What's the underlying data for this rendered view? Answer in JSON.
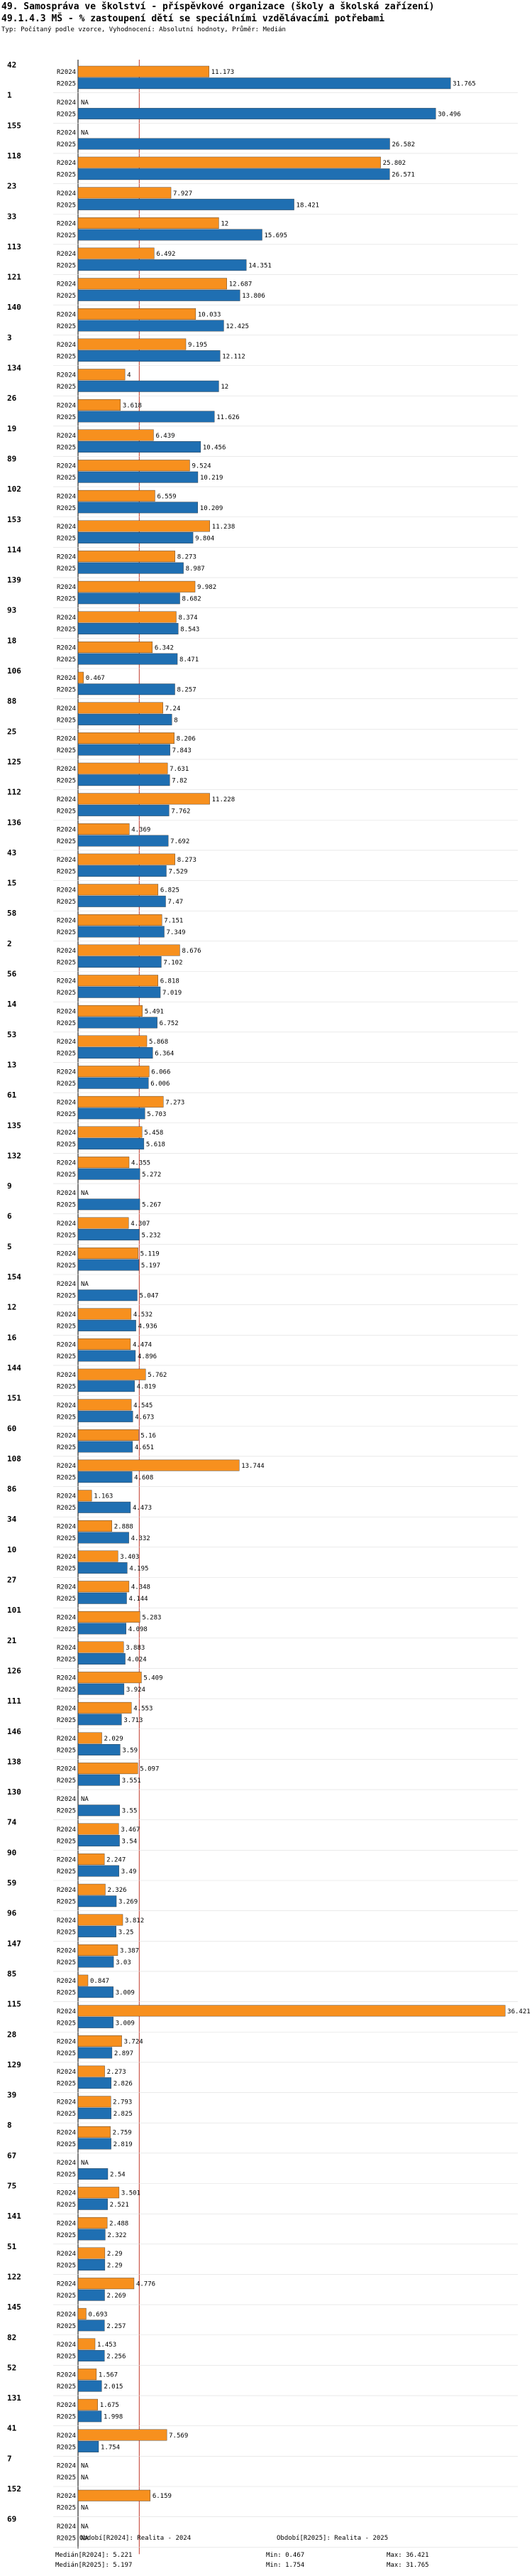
{
  "header": {
    "title": "49. Samospráva ve školství - příspěvkové organizace (školy a školská zařízení)",
    "subtitle_code": "49.1.4.3 MŠ - % zastoupení dětí se speciálními vzdělávacími potřebami",
    "note": "Typ: Počítaný podle vzorce, Vyhodnocení: Absolutní hodnoty, Průměr: Medián"
  },
  "chart_data": {
    "type": "bar",
    "orientation": "horizontal",
    "series": [
      {
        "name": "R2024",
        "color": "#f7901e"
      },
      {
        "name": "R2025",
        "color": "#1f6fb2"
      }
    ],
    "xlim": [
      0,
      37.5
    ],
    "median_line": 5.221,
    "categories": [
      {
        "id": "42",
        "r2024": 11.173,
        "r2025": 31.765
      },
      {
        "id": "1",
        "r2024": null,
        "r2025": 30.496
      },
      {
        "id": "155",
        "r2024": null,
        "r2025": 26.582
      },
      {
        "id": "118",
        "r2024": 25.802,
        "r2025": 26.571
      },
      {
        "id": "23",
        "r2024": 7.927,
        "r2025": 18.421
      },
      {
        "id": "33",
        "r2024": 12,
        "r2025": 15.695
      },
      {
        "id": "113",
        "r2024": 6.492,
        "r2025": 14.351
      },
      {
        "id": "121",
        "r2024": 12.687,
        "r2025": 13.806
      },
      {
        "id": "140",
        "r2024": 10.033,
        "r2025": 12.425
      },
      {
        "id": "3",
        "r2024": 9.195,
        "r2025": 12.112
      },
      {
        "id": "134",
        "r2024": 4,
        "r2025": 12
      },
      {
        "id": "26",
        "r2024": 3.618,
        "r2025": 11.626
      },
      {
        "id": "19",
        "r2024": 6.439,
        "r2025": 10.456
      },
      {
        "id": "89",
        "r2024": 9.524,
        "r2025": 10.219
      },
      {
        "id": "102",
        "r2024": 6.559,
        "r2025": 10.209
      },
      {
        "id": "153",
        "r2024": 11.238,
        "r2025": 9.804
      },
      {
        "id": "114",
        "r2024": 8.273,
        "r2025": 8.987
      },
      {
        "id": "139",
        "r2024": 9.982,
        "r2025": 8.682
      },
      {
        "id": "93",
        "r2024": 8.374,
        "r2025": 8.543
      },
      {
        "id": "18",
        "r2024": 6.342,
        "r2025": 8.471
      },
      {
        "id": "106",
        "r2024": 0.467,
        "r2025": 8.257
      },
      {
        "id": "88",
        "r2024": 7.24,
        "r2025": 8
      },
      {
        "id": "25",
        "r2024": 8.206,
        "r2025": 7.843
      },
      {
        "id": "125",
        "r2024": 7.631,
        "r2025": 7.82
      },
      {
        "id": "112",
        "r2024": 11.228,
        "r2025": 7.762
      },
      {
        "id": "136",
        "r2024": 4.369,
        "r2025": 7.692
      },
      {
        "id": "43",
        "r2024": 8.273,
        "r2025": 7.529
      },
      {
        "id": "15",
        "r2024": 6.825,
        "r2025": 7.47
      },
      {
        "id": "58",
        "r2024": 7.151,
        "r2025": 7.349
      },
      {
        "id": "2",
        "r2024": 8.676,
        "r2025": 7.102
      },
      {
        "id": "56",
        "r2024": 6.818,
        "r2025": 7.019
      },
      {
        "id": "14",
        "r2024": 5.491,
        "r2025": 6.752
      },
      {
        "id": "53",
        "r2024": 5.868,
        "r2025": 6.364
      },
      {
        "id": "13",
        "r2024": 6.066,
        "r2025": 6.006
      },
      {
        "id": "61",
        "r2024": 7.273,
        "r2025": 5.703
      },
      {
        "id": "135",
        "r2024": 5.458,
        "r2025": 5.618
      },
      {
        "id": "132",
        "r2024": 4.355,
        "r2025": 5.272
      },
      {
        "id": "9",
        "r2024": null,
        "r2025": 5.267
      },
      {
        "id": "6",
        "r2024": 4.307,
        "r2025": 5.232
      },
      {
        "id": "5",
        "r2024": 5.119,
        "r2025": 5.197
      },
      {
        "id": "154",
        "r2024": null,
        "r2025": 5.047
      },
      {
        "id": "12",
        "r2024": 4.532,
        "r2025": 4.936
      },
      {
        "id": "16",
        "r2024": 4.474,
        "r2025": 4.896
      },
      {
        "id": "144",
        "r2024": 5.762,
        "r2025": 4.819
      },
      {
        "id": "151",
        "r2024": 4.545,
        "r2025": 4.673
      },
      {
        "id": "60",
        "r2024": 5.16,
        "r2025": 4.651
      },
      {
        "id": "108",
        "r2024": 13.744,
        "r2025": 4.608
      },
      {
        "id": "86",
        "r2024": 1.163,
        "r2025": 4.473
      },
      {
        "id": "34",
        "r2024": 2.888,
        "r2025": 4.332
      },
      {
        "id": "10",
        "r2024": 3.403,
        "r2025": 4.195
      },
      {
        "id": "27",
        "r2024": 4.348,
        "r2025": 4.144
      },
      {
        "id": "101",
        "r2024": 5.283,
        "r2025": 4.098
      },
      {
        "id": "21",
        "r2024": 3.883,
        "r2025": 4.024
      },
      {
        "id": "126",
        "r2024": 5.409,
        "r2025": 3.924
      },
      {
        "id": "111",
        "r2024": 4.553,
        "r2025": 3.713
      },
      {
        "id": "146",
        "r2024": 2.029,
        "r2025": 3.59
      },
      {
        "id": "138",
        "r2024": 5.097,
        "r2025": 3.551
      },
      {
        "id": "130",
        "r2024": null,
        "r2025": 3.55
      },
      {
        "id": "74",
        "r2024": 3.467,
        "r2025": 3.54
      },
      {
        "id": "90",
        "r2024": 2.247,
        "r2025": 3.49
      },
      {
        "id": "59",
        "r2024": 2.326,
        "r2025": 3.269
      },
      {
        "id": "96",
        "r2024": 3.812,
        "r2025": 3.25
      },
      {
        "id": "147",
        "r2024": 3.387,
        "r2025": 3.03
      },
      {
        "id": "85",
        "r2024": 0.847,
        "r2025": 3.009
      },
      {
        "id": "115",
        "r2024": 36.421,
        "r2025": 3.009
      },
      {
        "id": "28",
        "r2024": 3.724,
        "r2025": 2.897
      },
      {
        "id": "129",
        "r2024": 2.273,
        "r2025": 2.826
      },
      {
        "id": "39",
        "r2024": 2.793,
        "r2025": 2.825
      },
      {
        "id": "8",
        "r2024": 2.759,
        "r2025": 2.819
      },
      {
        "id": "67",
        "r2024": null,
        "r2025": 2.54
      },
      {
        "id": "75",
        "r2024": 3.501,
        "r2025": 2.521
      },
      {
        "id": "141",
        "r2024": 2.488,
        "r2025": 2.322
      },
      {
        "id": "51",
        "r2024": 2.29,
        "r2025": 2.29
      },
      {
        "id": "122",
        "r2024": 4.776,
        "r2025": 2.269
      },
      {
        "id": "145",
        "r2024": 0.693,
        "r2025": 2.257
      },
      {
        "id": "82",
        "r2024": 1.453,
        "r2025": 2.256
      },
      {
        "id": "52",
        "r2024": 1.567,
        "r2025": 2.015
      },
      {
        "id": "131",
        "r2024": 1.675,
        "r2025": 1.998
      },
      {
        "id": "41",
        "r2024": 7.569,
        "r2025": 1.754
      },
      {
        "id": "7",
        "r2024": null,
        "r2025": null
      },
      {
        "id": "152",
        "r2024": 6.159,
        "r2025": null
      },
      {
        "id": "69",
        "r2024": null,
        "r2025": null
      }
    ],
    "na_label": "NA"
  },
  "legend": {
    "r2024": {
      "label": "Období[R2024]: Realita - 2024",
      "median": "Medián[R2024]: 5.221",
      "min": "Min: 0.467",
      "max": "Max: 36.421"
    },
    "r2025": {
      "label": "Období[R2025]: Realita - 2025",
      "median": "Medián[R2025]: 5.197",
      "min": "Min: 1.754",
      "max": "Max: 31.765"
    }
  }
}
